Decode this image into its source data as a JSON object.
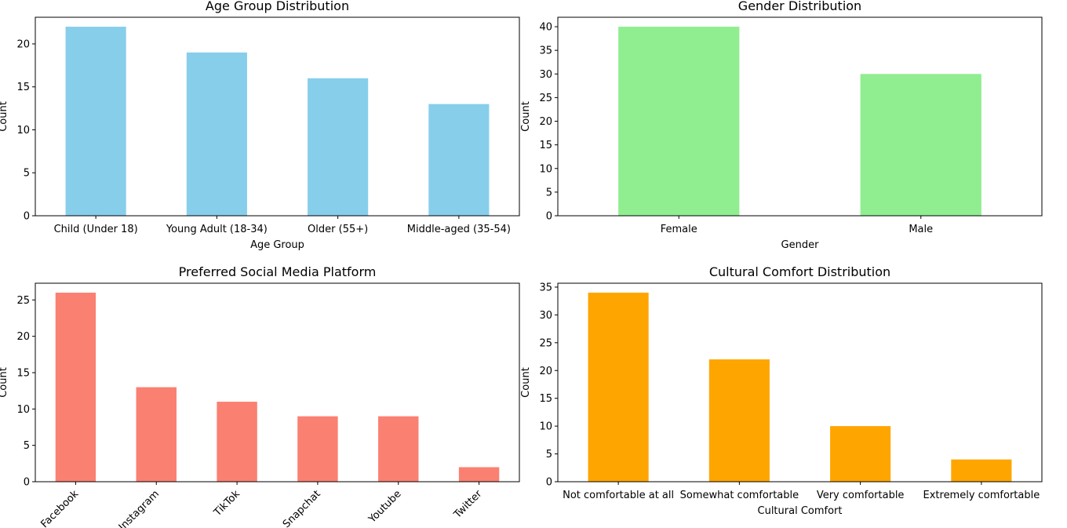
{
  "chart_data": [
    {
      "type": "bar",
      "title": "Age Group Distribution",
      "xlabel": "Age Group",
      "ylabel": "Count",
      "categories": [
        "Child (Under 18)",
        "Young Adult (18-34)",
        "Older (55+)",
        "Middle-aged (35-54)"
      ],
      "values": [
        22,
        19,
        16,
        13
      ],
      "ylim": [
        0,
        23.1
      ],
      "yticks": [
        0,
        5,
        10,
        15,
        20
      ],
      "color": "#87ceeb",
      "rotate_xticks": false,
      "grid": false
    },
    {
      "type": "bar",
      "title": "Gender Distribution",
      "xlabel": "Gender",
      "ylabel": "Count",
      "categories": [
        "Female",
        "Male"
      ],
      "values": [
        40,
        30
      ],
      "ylim": [
        0,
        42
      ],
      "yticks": [
        0,
        5,
        10,
        15,
        20,
        25,
        30,
        35,
        40
      ],
      "color": "#90ee90",
      "rotate_xticks": false,
      "grid": false
    },
    {
      "type": "bar",
      "title": "Preferred Social Media Platform",
      "xlabel": "",
      "ylabel": "Count",
      "categories": [
        "Facebook",
        "Instagram",
        "TikTok",
        "Snapchat",
        "Youtube",
        "Twitter"
      ],
      "values": [
        26,
        13,
        11,
        9,
        9,
        2
      ],
      "ylim": [
        0,
        27.3
      ],
      "yticks": [
        0,
        5,
        10,
        15,
        20,
        25
      ],
      "color": "#fa8072",
      "rotate_xticks": true,
      "grid": false
    },
    {
      "type": "bar",
      "title": "Cultural Comfort Distribution",
      "xlabel": "Cultural Comfort",
      "ylabel": "Count",
      "categories": [
        "Not comfortable at all",
        "Somewhat comfortable",
        "Very comfortable",
        "Extremely comfortable"
      ],
      "values": [
        34,
        22,
        10,
        4
      ],
      "ylim": [
        0,
        35.7
      ],
      "yticks": [
        0,
        5,
        10,
        15,
        20,
        25,
        30,
        35
      ],
      "color": "#ffa500",
      "rotate_xticks": false,
      "grid": false
    }
  ]
}
